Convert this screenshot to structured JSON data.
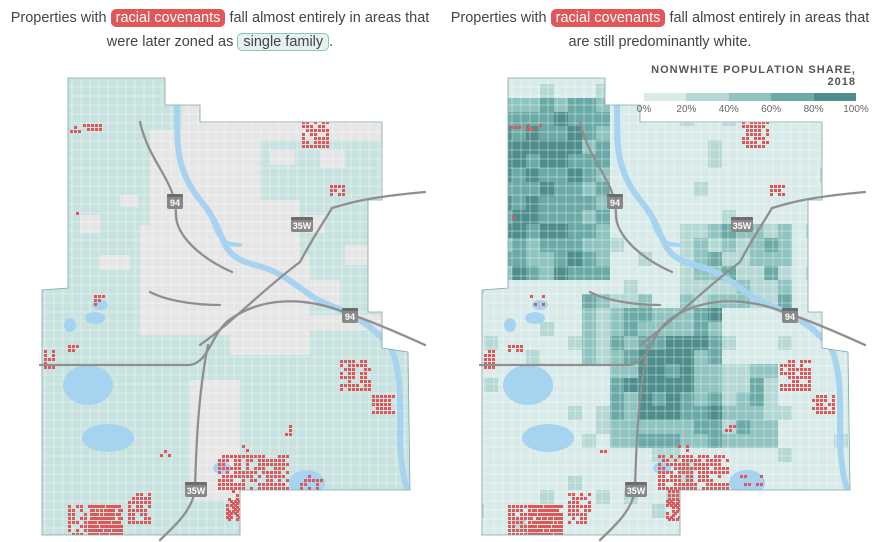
{
  "left": {
    "caption_pre": "Properties with",
    "caption_highlight": "racial covenants",
    "caption_mid": "fall almost entirely in areas that were later zoned as",
    "caption_highlight2": "single family",
    "caption_end": "."
  },
  "right": {
    "caption_pre": "Properties with",
    "caption_highlight": "racial covenants",
    "caption_mid": "fall almost entirely in areas that are still predominantly white."
  },
  "highways": {
    "i94": "94",
    "i35w": "35W"
  },
  "legend": {
    "title": "NONWHITE POPULATION SHARE, 2018",
    "ticks": [
      "0%",
      "20%",
      "40%",
      "60%",
      "80%",
      "100%"
    ],
    "colors": [
      "#d9ebe9",
      "#b5d8d4",
      "#8fc3bf",
      "#6aa9a6",
      "#4e8d8b"
    ]
  },
  "colors": {
    "covenant": "#e15759",
    "single_family": "#c7e2df",
    "water": "#a6d3ef",
    "land": "#e6e6e6",
    "highway": "#8f8f8f"
  }
}
